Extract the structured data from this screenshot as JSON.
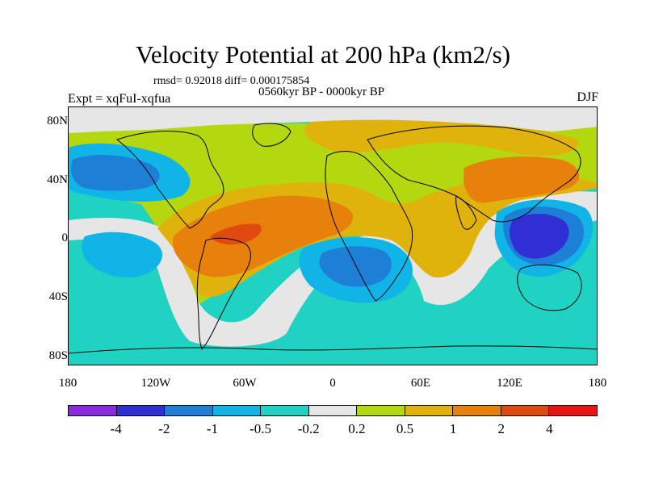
{
  "title": "Velocity Potential at 200 hPa (km2/s)",
  "stats": "rmsd= 0.92018 diff= 0.000175854",
  "period": "0560kyr BP - 0000kyr BP",
  "expt": "Expt = xqFuI-xqfua",
  "season": "DJF",
  "lat_labels": [
    "80N",
    "40N",
    "0",
    "40S",
    "80S"
  ],
  "lon_labels": [
    "180",
    "120W",
    "60W",
    "0",
    "60E",
    "120E",
    "180"
  ],
  "colorbar": {
    "colors": [
      "#8a2be2",
      "#2f2fd4",
      "#1e7fd6",
      "#10b4e6",
      "#20d2c2",
      "#e6e6e6",
      "#b4d810",
      "#e0b20c",
      "#e8800c",
      "#e04a10",
      "#e81414"
    ],
    "labels": [
      "-4",
      "-2",
      "-1",
      "-0.5",
      "-0.2",
      "0.2",
      "0.5",
      "1",
      "2",
      "4"
    ]
  }
}
